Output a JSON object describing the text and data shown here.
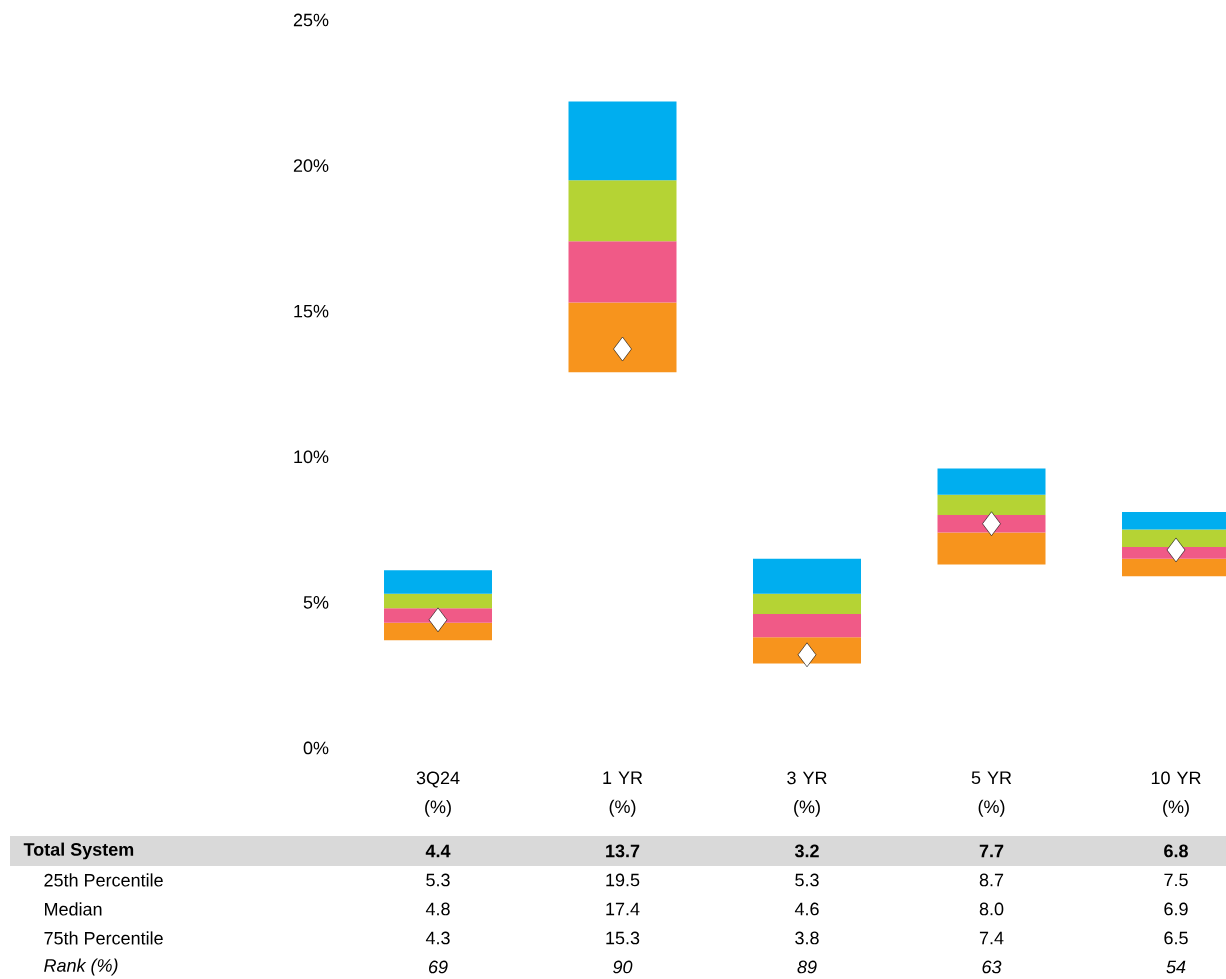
{
  "chart_data": {
    "type": "bar",
    "categories": [
      "3Q24 (%)",
      "1 YR (%)",
      "3 YR (%)",
      "5 YR (%)",
      "10 YR (%)"
    ],
    "series": [
      {
        "color": "#f7941d",
        "base": [
          3.7,
          12.9,
          2.9,
          6.3,
          5.9
        ],
        "values": [
          0.6,
          2.4,
          0.9,
          1.1,
          0.6
        ]
      },
      {
        "color": "#f05a87",
        "base": [
          4.3,
          15.3,
          3.8,
          7.4,
          6.5
        ],
        "values": [
          0.5,
          2.1,
          0.8,
          0.6,
          0.4
        ]
      },
      {
        "color": "#b5d334",
        "base": [
          4.8,
          17.4,
          4.6,
          8.0,
          6.9
        ],
        "values": [
          0.5,
          2.1,
          0.7,
          0.7,
          0.6
        ]
      },
      {
        "color": "#00aeef",
        "base": [
          5.3,
          19.5,
          5.3,
          8.7,
          7.5
        ],
        "values": [
          0.8,
          2.7,
          1.2,
          0.9,
          0.6
        ]
      },
      {
        "type": "scatter",
        "color": "#ffffff",
        "marker": "diamond",
        "values": [
          4.4,
          13.7,
          3.2,
          7.7,
          6.8
        ],
        "value_labels": [
          "4.4",
          "13.7",
          "3.2",
          "7.7",
          "6.8"
        ]
      }
    ],
    "ylim": [
      0,
      25
    ],
    "yticks": [
      {
        "value": 0,
        "label": "0%"
      },
      {
        "value": 5,
        "label": "5%"
      },
      {
        "value": 10,
        "label": "10%"
      },
      {
        "value": 15,
        "label": "15%"
      },
      {
        "value": 20,
        "label": "20%"
      },
      {
        "value": 25,
        "label": "25%"
      }
    ],
    "annotations": [
      "Total System",
      "25th Percentile",
      "5.3",
      "19.5",
      "5.3",
      "8.7",
      "7.5",
      "Median",
      "4.8",
      "17.4",
      "4.6",
      "8.0",
      "6.9",
      "75th Percentile",
      "4.3",
      "15.3",
      "3.8",
      "7.4",
      "6.5",
      "Rank (%)",
      "69",
      "90",
      "89",
      "63",
      "54"
    ]
  }
}
